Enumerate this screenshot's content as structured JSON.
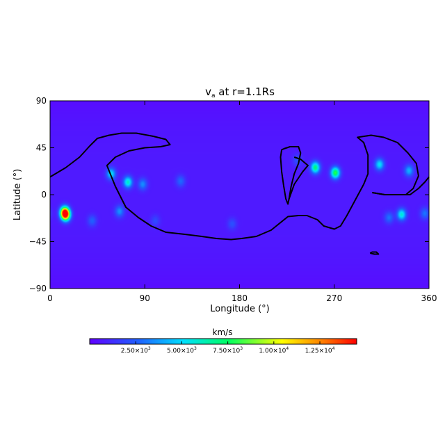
{
  "chart_data": {
    "type": "heatmap",
    "title_main": "v",
    "title_sub": "a",
    "title_rest": " at r=1.1Rs",
    "xlabel": "Longitude (°)",
    "ylabel": "Latitude (°)",
    "xlim": [
      0,
      360
    ],
    "ylim": [
      -90,
      90
    ],
    "xticks": [
      0,
      90,
      180,
      270,
      360
    ],
    "yticks": [
      -90,
      -45,
      0,
      45,
      90
    ],
    "background_value": 700,
    "blobs": [
      {
        "lon": 14,
        "lat": -17,
        "value": 13000
      },
      {
        "lon": 15,
        "lat": -20,
        "value": 9000
      },
      {
        "lon": 58,
        "lat": 20,
        "value": 5200
      },
      {
        "lon": 74,
        "lat": 12,
        "value": 6000
      },
      {
        "lon": 88,
        "lat": 10,
        "value": 3500
      },
      {
        "lon": 124,
        "lat": 13,
        "value": 2800
      },
      {
        "lon": 66,
        "lat": -16,
        "value": 3600
      },
      {
        "lon": 40,
        "lat": -25,
        "value": 2600
      },
      {
        "lon": 100,
        "lat": -25,
        "value": 2000
      },
      {
        "lon": 173,
        "lat": -28,
        "value": 2200
      },
      {
        "lon": 252,
        "lat": 26,
        "value": 7200
      },
      {
        "lon": 271,
        "lat": 21,
        "value": 8000
      },
      {
        "lon": 313,
        "lat": 29,
        "value": 5200
      },
      {
        "lon": 341,
        "lat": 23,
        "value": 4200
      },
      {
        "lon": 334,
        "lat": -19,
        "value": 5800
      },
      {
        "lon": 322,
        "lat": -22,
        "value": 3000
      },
      {
        "lon": 356,
        "lat": -18,
        "value": 3000
      },
      {
        "lon": 235,
        "lat": 33,
        "value": 2200
      }
    ],
    "neutral_lines": [
      [
        [
          0,
          17
        ],
        [
          15,
          26
        ],
        [
          28,
          36
        ],
        [
          38,
          47
        ],
        [
          45,
          54
        ],
        [
          56,
          57
        ],
        [
          68,
          59
        ],
        [
          82,
          59
        ],
        [
          98,
          56
        ],
        [
          110,
          53
        ],
        [
          114,
          48
        ],
        [
          105,
          46
        ],
        [
          90,
          45
        ],
        [
          75,
          42
        ],
        [
          62,
          36
        ],
        [
          54,
          28
        ],
        [
          58,
          18
        ],
        [
          62,
          8
        ],
        [
          66,
          0
        ],
        [
          72,
          -12
        ],
        [
          84,
          -22
        ],
        [
          96,
          -30
        ],
        [
          110,
          -36
        ],
        [
          128,
          -38
        ],
        [
          144,
          -40
        ],
        [
          158,
          -42
        ],
        [
          172,
          -43
        ],
        [
          182,
          -42
        ],
        [
          196,
          -40
        ],
        [
          210,
          -34
        ],
        [
          226,
          -21
        ],
        [
          236,
          -20
        ],
        [
          244,
          -20
        ],
        [
          254,
          -24
        ],
        [
          260,
          -30
        ],
        [
          270,
          -33
        ],
        [
          276,
          -30
        ],
        [
          282,
          -20
        ],
        [
          290,
          -5
        ],
        [
          298,
          10
        ],
        [
          302,
          20
        ],
        [
          302,
          38
        ],
        [
          298,
          50
        ],
        [
          292,
          55
        ],
        [
          305,
          57
        ],
        [
          317,
          55
        ],
        [
          330,
          50
        ],
        [
          340,
          40
        ],
        [
          348,
          30
        ],
        [
          350,
          18
        ],
        [
          345,
          6
        ],
        [
          338,
          0
        ],
        [
          330,
          0
        ],
        [
          318,
          0
        ],
        [
          306,
          2
        ]
      ],
      [
        [
          306,
          2
        ],
        [
          318,
          0
        ],
        [
          332,
          0
        ],
        [
          342,
          0
        ],
        [
          350,
          6
        ],
        [
          356,
          12
        ],
        [
          360,
          17
        ]
      ],
      [
        [
          222,
          44
        ],
        [
          228,
          46
        ],
        [
          236,
          46
        ],
        [
          238,
          40
        ],
        [
          236,
          30
        ],
        [
          232,
          20
        ],
        [
          229,
          8
        ],
        [
          227,
          -4
        ],
        [
          226,
          -9
        ],
        [
          224,
          -4
        ],
        [
          222,
          8
        ],
        [
          220,
          22
        ],
        [
          219,
          36
        ],
        [
          220,
          43
        ],
        [
          222,
          44
        ]
      ],
      [
        [
          227,
          -4
        ],
        [
          232,
          10
        ],
        [
          240,
          22
        ],
        [
          245,
          28
        ],
        [
          238,
          34
        ],
        [
          232,
          36
        ]
      ],
      [
        [
          304,
          -56
        ],
        [
          308,
          -57
        ],
        [
          312,
          -57
        ],
        [
          310,
          -55
        ],
        [
          306,
          -55
        ],
        [
          304,
          -56
        ]
      ]
    ],
    "colorbar": {
      "label": "km/s",
      "range": [
        0,
        14500
      ],
      "ticks": [
        {
          "value": 2500,
          "mantissa": "2.50×10",
          "exp": "3"
        },
        {
          "value": 5000,
          "mantissa": "5.00×10",
          "exp": "3"
        },
        {
          "value": 7500,
          "mantissa": "7.50×10",
          "exp": "3"
        },
        {
          "value": 10000,
          "mantissa": "1.00×10",
          "exp": "4"
        },
        {
          "value": 12500,
          "mantissa": "1.25×10",
          "exp": "4"
        }
      ]
    }
  }
}
